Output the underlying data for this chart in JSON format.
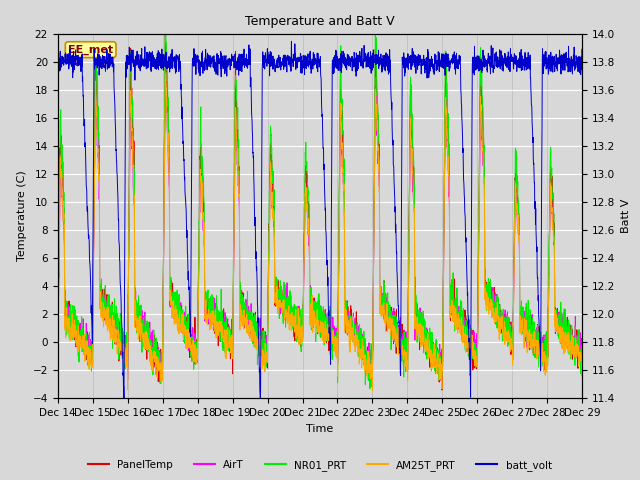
{
  "title": "Temperature and Batt V",
  "xlabel": "Time",
  "ylabel_left": "Temperature (C)",
  "ylabel_right": "Batt V",
  "annotation": "EE_met",
  "ylim_left": [
    -4,
    22
  ],
  "ylim_right": [
    11.4,
    14.0
  ],
  "yticks_left": [
    -4,
    -2,
    0,
    2,
    4,
    6,
    8,
    10,
    12,
    14,
    16,
    18,
    20,
    22
  ],
  "yticks_right": [
    11.4,
    11.6,
    11.8,
    12.0,
    12.2,
    12.4,
    12.6,
    12.8,
    13.0,
    13.2,
    13.4,
    13.6,
    13.8,
    14.0
  ],
  "x_tick_labels": [
    "Dec 14",
    "Dec 15",
    "Dec 16",
    "Dec 17",
    "Dec 18",
    "Dec 19",
    "Dec 20",
    "Dec 21",
    "Dec 22",
    "Dec 23",
    "Dec 24",
    "Dec 25",
    "Dec 26",
    "Dec 27",
    "Dec 28",
    "Dec 29"
  ],
  "colors": {
    "PanelTemp": "#dd0000",
    "AirT": "#ff00ff",
    "NR01_PRT": "#00ee00",
    "AM25T_PRT": "#ffaa00",
    "batt_volt": "#0000cc"
  },
  "legend_entries": [
    "PanelTemp",
    "AirT",
    "NR01_PRT",
    "AM25T_PRT",
    "batt_volt"
  ],
  "figsize": [
    6.4,
    4.8
  ],
  "dpi": 100,
  "background_color": "#d8d8d8",
  "grid_color": "#ffffff",
  "annotation_facecolor": "#ffff99",
  "annotation_edgecolor": "#cc8800",
  "annotation_textcolor": "#880000"
}
